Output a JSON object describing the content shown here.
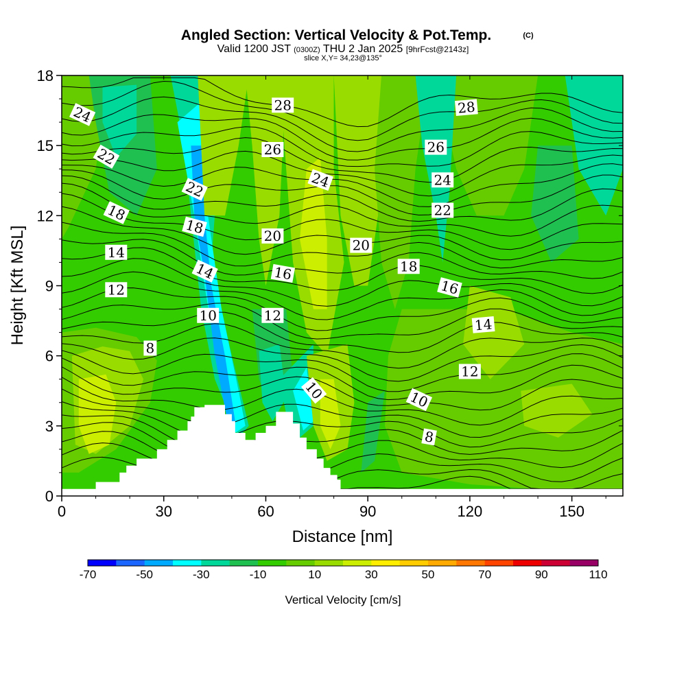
{
  "chart_data": {
    "type": "heatmap",
    "title": "Angled Section: Vertical Velocity & Pot.Temp.",
    "title_mark": "(C)",
    "subtitle_parts": [
      "Valid 1200 JST",
      "(0300Z)",
      "THU 2 Jan 2025",
      "[9hrFcst@2143z]"
    ],
    "slice_label": "slice X,Y= 34,23@135°",
    "xlabel": "Distance [nm]",
    "ylabel": "Height [Kft MSL]",
    "xlim": [
      0,
      165
    ],
    "ylim": [
      0,
      18
    ],
    "x_ticks": [
      0,
      30,
      60,
      90,
      120,
      150
    ],
    "y_ticks": [
      0,
      3,
      6,
      9,
      12,
      15,
      18
    ],
    "colorbar": {
      "label": "Vertical Velocity [cm/s]",
      "tick_values": [
        -70,
        -50,
        -30,
        -10,
        10,
        30,
        50,
        70,
        90,
        110
      ],
      "levels": [
        -70,
        -60,
        -50,
        -40,
        -30,
        -20,
        -10,
        0,
        10,
        20,
        30,
        40,
        50,
        60,
        70,
        80,
        90,
        100,
        110
      ],
      "colors": [
        "#0000ff",
        "#1a66ff",
        "#00aaff",
        "#00ffff",
        "#00d89a",
        "#1fc050",
        "#33cc00",
        "#66cc00",
        "#99dd00",
        "#ccee00",
        "#ffee00",
        "#ffcc00",
        "#ffaa00",
        "#ff7700",
        "#ff4400",
        "#ee0000",
        "#cc0033",
        "#990066"
      ]
    },
    "background_color": "#33cc00",
    "contour_line_color": "#000000",
    "contour_labels": [
      {
        "text": "28",
        "x": 65,
        "y": 16.7,
        "angle": 0
      },
      {
        "text": "28",
        "x": 119,
        "y": 16.6,
        "angle": -5
      },
      {
        "text": "26",
        "x": 62,
        "y": 14.8,
        "angle": 0
      },
      {
        "text": "26",
        "x": 110,
        "y": 14.9,
        "angle": 0
      },
      {
        "text": "24",
        "x": 6,
        "y": 16.3,
        "angle": 25
      },
      {
        "text": "24",
        "x": 76,
        "y": 13.5,
        "angle": 20
      },
      {
        "text": "24",
        "x": 112,
        "y": 13.5,
        "angle": 0
      },
      {
        "text": "22",
        "x": 13,
        "y": 14.5,
        "angle": 30
      },
      {
        "text": "22",
        "x": 39,
        "y": 13.1,
        "angle": 25
      },
      {
        "text": "22",
        "x": 112,
        "y": 12.2,
        "angle": 0
      },
      {
        "text": "20",
        "x": 62,
        "y": 11.1,
        "angle": 0
      },
      {
        "text": "20",
        "x": 88,
        "y": 10.7,
        "angle": 0
      },
      {
        "text": "18",
        "x": 16,
        "y": 12.1,
        "angle": 25
      },
      {
        "text": "18",
        "x": 39,
        "y": 11.5,
        "angle": 15
      },
      {
        "text": "18",
        "x": 102,
        "y": 9.8,
        "angle": 0
      },
      {
        "text": "16",
        "x": 65,
        "y": 9.5,
        "angle": 10
      },
      {
        "text": "16",
        "x": 114,
        "y": 8.9,
        "angle": 15
      },
      {
        "text": "14",
        "x": 16,
        "y": 10.4,
        "angle": 0
      },
      {
        "text": "14",
        "x": 42,
        "y": 9.6,
        "angle": 25
      },
      {
        "text": "14",
        "x": 124,
        "y": 7.3,
        "angle": -5
      },
      {
        "text": "12",
        "x": 16,
        "y": 8.8,
        "angle": 0
      },
      {
        "text": "12",
        "x": 62,
        "y": 7.7,
        "angle": 0
      },
      {
        "text": "12",
        "x": 120,
        "y": 5.3,
        "angle": 0
      },
      {
        "text": "10",
        "x": 43,
        "y": 7.7,
        "angle": 0
      },
      {
        "text": "10",
        "x": 74,
        "y": 4.5,
        "angle": 50
      },
      {
        "text": "10",
        "x": 105,
        "y": 4.1,
        "angle": 25
      },
      {
        "text": "8",
        "x": 26,
        "y": 6.3,
        "angle": 0
      },
      {
        "text": "8",
        "x": 108,
        "y": 2.5,
        "angle": 10
      }
    ]
  }
}
